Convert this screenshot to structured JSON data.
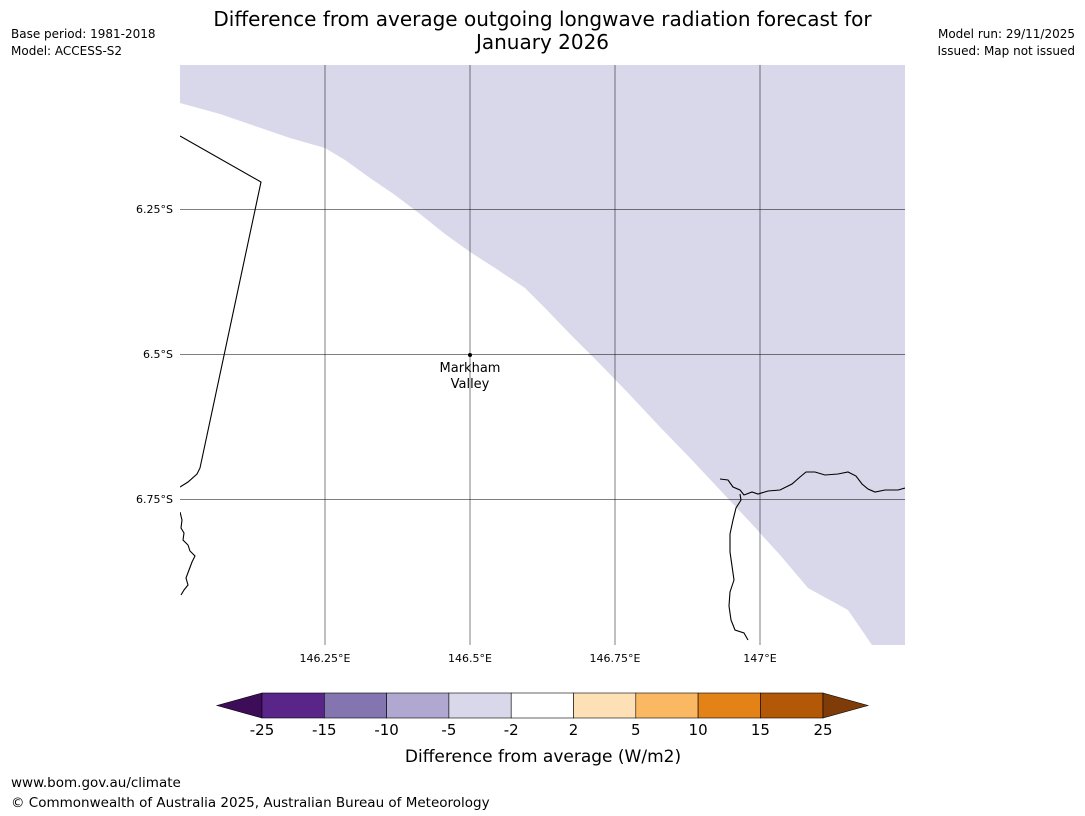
{
  "header": {
    "base_period": "Base period: 1981-2018",
    "model": "Model: ACCESS-S2",
    "title_line1": "Difference from average outgoing longwave radiation forecast for",
    "title_line2": "January 2026",
    "model_run": "Model run: 29/11/2025",
    "issued": "Issued: Map not issued"
  },
  "map": {
    "lat_labels": [
      "6.25°S",
      "6.5°S",
      "6.75°S"
    ],
    "lon_labels": [
      "146.25°E",
      "146.5°E",
      "146.75°E",
      "147°E"
    ],
    "place": {
      "name_line1": "Markham",
      "name_line2": "Valley"
    },
    "anomaly_color": "#d8d8ea"
  },
  "legend": {
    "title": "Difference from average (W/m2)",
    "ticks": [
      "-25",
      "-15",
      "-10",
      "-5",
      "-2",
      "2",
      "5",
      "10",
      "15",
      "25"
    ],
    "colors": [
      "#3d0d5a",
      "#5a2589",
      "#8475b0",
      "#b0a8d1",
      "#d8d8ea",
      "#ffffff",
      "#fde0b5",
      "#fbb862",
      "#e38216",
      "#b35807",
      "#7f3b08"
    ]
  },
  "footer": {
    "url": "www.bom.gov.au/climate",
    "copyright": "© Commonwealth of Australia 2025, Australian Bureau of Meteorology"
  }
}
